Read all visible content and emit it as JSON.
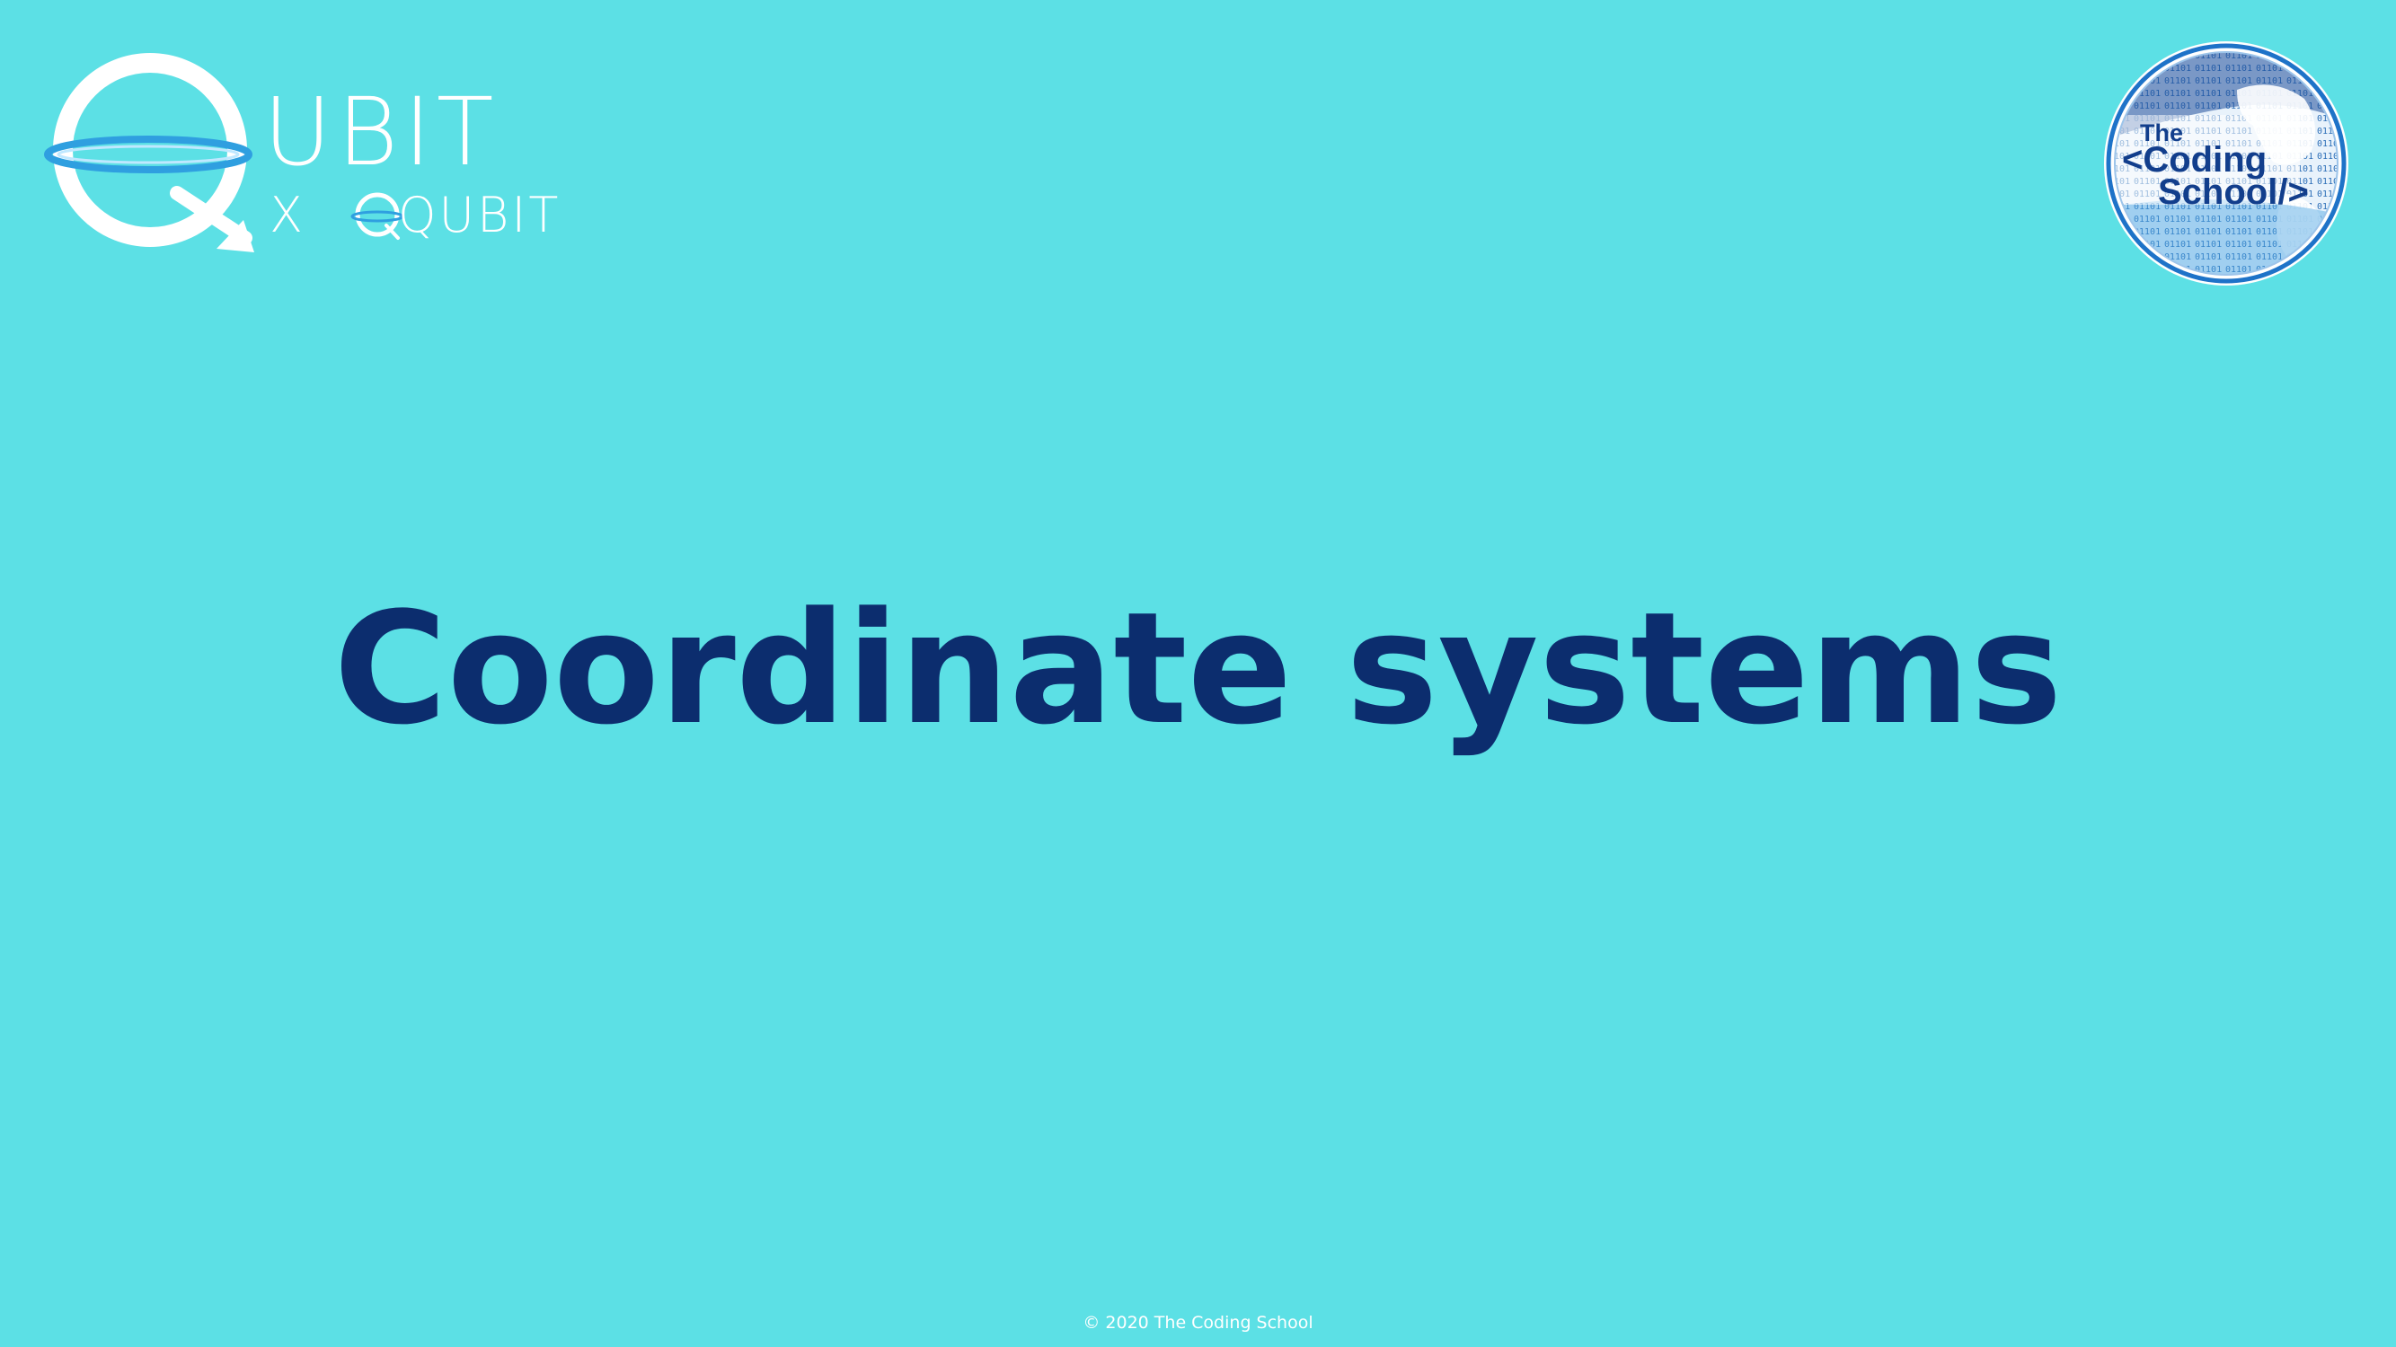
{
  "slide": {
    "title": "Coordinate systems",
    "footer": "© 2020 The Coding School",
    "background_color": "#5ce0e5",
    "title_color": "#0c2d6e"
  },
  "logos": {
    "qubit": {
      "word": "UBIT",
      "sub_x": "X",
      "sub_word": "QUBIT",
      "color": "#ffffff",
      "ring_color": "#2f9fe0"
    },
    "coding_school": {
      "line1": "The",
      "line2": "<Coding",
      "line3": "School/>",
      "text_color": "#123e8c"
    }
  }
}
